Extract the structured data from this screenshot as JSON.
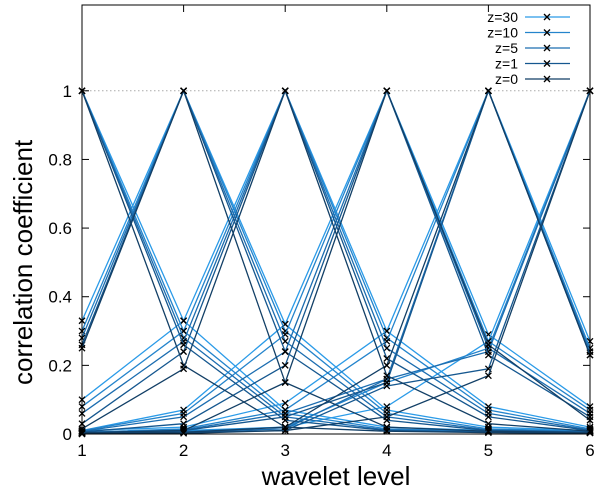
{
  "chart_data": {
    "type": "line",
    "title": "",
    "xlabel": "wavelet level",
    "ylabel": "correlation coefficient",
    "xlim": [
      1,
      6
    ],
    "ylim": [
      0,
      1.25
    ],
    "x_ticks": [
      1,
      2,
      3,
      4,
      5,
      6
    ],
    "x_tick_labels": [
      "1",
      "2",
      "3",
      "4",
      "5",
      "6"
    ],
    "y_ticks": [
      0,
      0.2,
      0.4,
      0.6,
      0.8,
      1
    ],
    "y_tick_labels": [
      "0",
      "0.2",
      "0.4",
      "0.6",
      "0.8",
      "1"
    ],
    "reference_line": 1,
    "legend_position": "top-right",
    "marker": "x",
    "x": [
      1,
      2,
      3,
      4,
      5,
      6
    ],
    "series": [
      {
        "name": "z=30",
        "color": "#2b9be8",
        "lines": [
          {
            "level": 1,
            "values": [
              1.0,
              0.33,
              0.07,
              0.02,
              0.01,
              0.01
            ]
          },
          {
            "level": 2,
            "values": [
              0.33,
              1.0,
              0.32,
              0.07,
              0.02,
              0.01
            ]
          },
          {
            "level": 3,
            "values": [
              0.1,
              0.33,
              1.0,
              0.3,
              0.08,
              0.02
            ]
          },
          {
            "level": 4,
            "values": [
              0.01,
              0.07,
              0.32,
              1.0,
              0.29,
              0.08
            ]
          },
          {
            "level": 5,
            "values": [
              0.01,
              0.02,
              0.09,
              0.3,
              1.0,
              0.27
            ]
          },
          {
            "level": 6,
            "values": [
              0.0,
              0.01,
              0.02,
              0.08,
              0.27,
              1.0
            ]
          }
        ]
      },
      {
        "name": "z=10",
        "color": "#2484cc",
        "lines": [
          {
            "level": 1,
            "values": [
              1.0,
              0.3,
              0.06,
              0.015,
              0.008,
              0.005
            ]
          },
          {
            "level": 2,
            "values": [
              0.3,
              1.0,
              0.3,
              0.06,
              0.015,
              0.008
            ]
          },
          {
            "level": 3,
            "values": [
              0.08,
              0.3,
              1.0,
              0.28,
              0.07,
              0.015
            ]
          },
          {
            "level": 4,
            "values": [
              0.01,
              0.06,
              0.29,
              1.0,
              0.27,
              0.07
            ]
          },
          {
            "level": 5,
            "values": [
              0.005,
              0.015,
              0.07,
              0.27,
              1.0,
              0.25
            ]
          },
          {
            "level": 6,
            "values": [
              0.003,
              0.008,
              0.02,
              0.15,
              0.25,
              1.0
            ]
          }
        ]
      },
      {
        "name": "z=5",
        "color": "#1c6db0",
        "lines": [
          {
            "level": 1,
            "values": [
              1.0,
              0.28,
              0.05,
              0.012,
              0.006,
              0.004
            ]
          },
          {
            "level": 2,
            "values": [
              0.28,
              1.0,
              0.27,
              0.05,
              0.012,
              0.006
            ]
          },
          {
            "level": 3,
            "values": [
              0.06,
              0.27,
              1.0,
              0.25,
              0.06,
              0.012
            ]
          },
          {
            "level": 4,
            "values": [
              0.008,
              0.05,
              0.24,
              1.0,
              0.25,
              0.06
            ]
          },
          {
            "level": 5,
            "values": [
              0.004,
              0.012,
              0.06,
              0.16,
              1.0,
              0.24
            ]
          },
          {
            "level": 6,
            "values": [
              0.002,
              0.006,
              0.015,
              0.16,
              0.24,
              1.0
            ]
          }
        ]
      },
      {
        "name": "z=1",
        "color": "#15578f",
        "lines": [
          {
            "level": 1,
            "values": [
              1.0,
              0.26,
              0.04,
              0.01,
              0.005,
              0.003
            ]
          },
          {
            "level": 2,
            "values": [
              0.26,
              1.0,
              0.24,
              0.04,
              0.01,
              0.005
            ]
          },
          {
            "level": 3,
            "values": [
              0.03,
              0.24,
              1.0,
              0.22,
              0.05,
              0.01
            ]
          },
          {
            "level": 4,
            "values": [
              0.006,
              0.03,
              0.2,
              1.0,
              0.23,
              0.05
            ]
          },
          {
            "level": 5,
            "values": [
              0.003,
              0.01,
              0.05,
              0.15,
              1.0,
              0.23
            ]
          },
          {
            "level": 6,
            "values": [
              0.002,
              0.005,
              0.01,
              0.14,
              0.19,
              1.0
            ]
          }
        ]
      },
      {
        "name": "z=0",
        "color": "#123f66",
        "lines": [
          {
            "level": 1,
            "values": [
              1.0,
              0.2,
              0.02,
              0.008,
              0.004,
              0.003
            ]
          },
          {
            "level": 2,
            "values": [
              0.25,
              1.0,
              0.15,
              0.02,
              0.008,
              0.004
            ]
          },
          {
            "level": 3,
            "values": [
              0.015,
              0.19,
              1.0,
              0.17,
              0.03,
              0.008
            ]
          },
          {
            "level": 4,
            "values": [
              0.004,
              0.01,
              0.15,
              1.0,
              0.26,
              0.04
            ]
          },
          {
            "level": 5,
            "values": [
              0.002,
              0.005,
              0.02,
              0.2,
              1.0,
              0.23
            ]
          },
          {
            "level": 6,
            "values": [
              0.001,
              0.002,
              0.01,
              0.05,
              0.17,
              1.0
            ]
          }
        ]
      }
    ]
  }
}
